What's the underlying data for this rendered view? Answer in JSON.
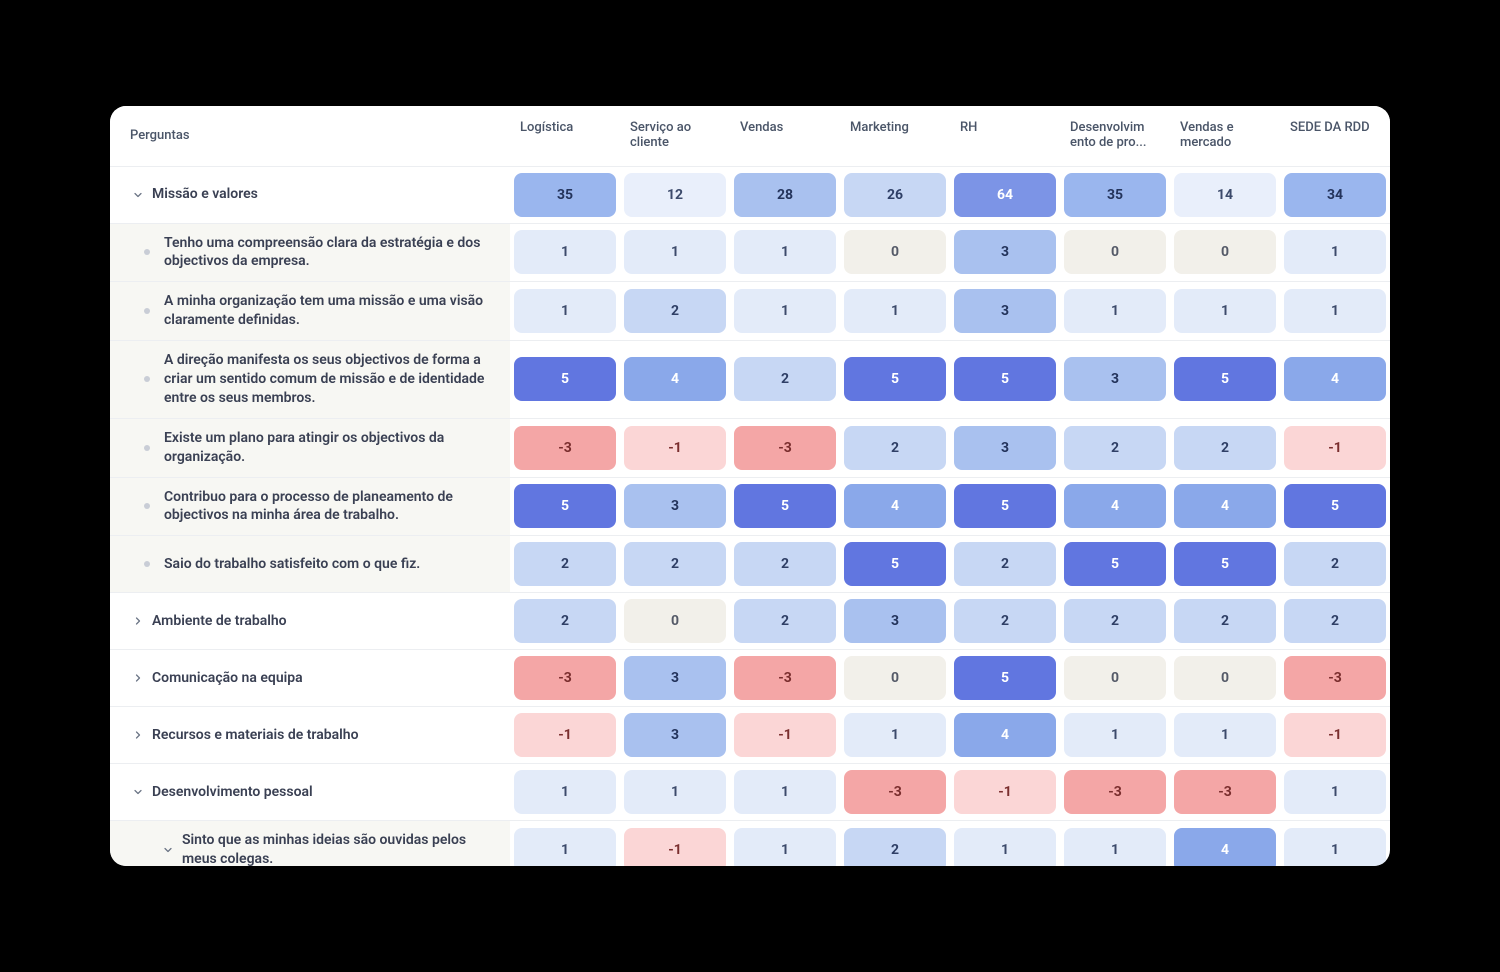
{
  "colors": {
    "page_bg": "#000000",
    "card_bg": "#ffffff",
    "border": "#eceef1",
    "text_header": "#4a5568",
    "text_row": "#3a4053",
    "bullet": "#c9cdd6",
    "sub_row_bg": "#f7f7f3",
    "scale": {
      "n3": {
        "bg": "#f4a6a6",
        "fg": "#7a2e2e"
      },
      "n1": {
        "bg": "#fbd6d6",
        "fg": "#7a2e2e"
      },
      "z0": {
        "bg": "#f2f0ea",
        "fg": "#555a68"
      },
      "p1": {
        "bg": "#e3ebf9",
        "fg": "#3c4a6b"
      },
      "p2": {
        "bg": "#c7d7f4",
        "fg": "#2f3f66"
      },
      "p3": {
        "bg": "#a9c1ef",
        "fg": "#24345c"
      },
      "p4": {
        "bg": "#8aa8ea",
        "fg": "#ffffff"
      },
      "p5": {
        "bg": "#6176e0",
        "fg": "#ffffff"
      },
      "hdr_low": {
        "bg": "#e9effb",
        "fg": "#3c4a6b"
      },
      "hdr_mid1": {
        "bg": "#c7d7f4",
        "fg": "#2f3f66"
      },
      "hdr_mid2": {
        "bg": "#a9c1ef",
        "fg": "#24345c"
      },
      "hdr_mid3": {
        "bg": "#9ab6ee",
        "fg": "#24345c"
      },
      "hdr_high": {
        "bg": "#7c94e6",
        "fg": "#ffffff"
      }
    }
  },
  "columns_header_label": "Perguntas",
  "columns": [
    "Logística",
    "Serviço ao cliente",
    "Vendas",
    "Marketing",
    "RH",
    "Desenvolvim ento de pro...",
    "Vendas e mercado",
    "SEDE DA RDD"
  ],
  "rows": [
    {
      "type": "cat",
      "expanded": true,
      "label": "Missão e valores",
      "cells": [
        {
          "v": 35,
          "c": "hdr_mid3"
        },
        {
          "v": 12,
          "c": "hdr_low"
        },
        {
          "v": 28,
          "c": "hdr_mid2"
        },
        {
          "v": 26,
          "c": "hdr_mid1"
        },
        {
          "v": 64,
          "c": "hdr_high"
        },
        {
          "v": 35,
          "c": "hdr_mid3"
        },
        {
          "v": 14,
          "c": "hdr_low"
        },
        {
          "v": 34,
          "c": "hdr_mid3"
        }
      ]
    },
    {
      "type": "sub",
      "label": "Tenho uma compreensão clara da estratégia e dos objectivos da empresa.",
      "cells": [
        {
          "v": 1,
          "c": "p1"
        },
        {
          "v": 1,
          "c": "p1"
        },
        {
          "v": 1,
          "c": "p1"
        },
        {
          "v": 0,
          "c": "z0"
        },
        {
          "v": 3,
          "c": "p3"
        },
        {
          "v": 0,
          "c": "z0"
        },
        {
          "v": 0,
          "c": "z0"
        },
        {
          "v": 1,
          "c": "p1"
        }
      ]
    },
    {
      "type": "sub",
      "label": "A minha organização tem uma missão e uma visão claramente definidas.",
      "cells": [
        {
          "v": 1,
          "c": "p1"
        },
        {
          "v": 2,
          "c": "p2"
        },
        {
          "v": 1,
          "c": "p1"
        },
        {
          "v": 1,
          "c": "p1"
        },
        {
          "v": 3,
          "c": "p3"
        },
        {
          "v": 1,
          "c": "p1"
        },
        {
          "v": 1,
          "c": "p1"
        },
        {
          "v": 1,
          "c": "p1"
        }
      ]
    },
    {
      "type": "sub",
      "label": "A direção manifesta os seus objectivos de forma a criar um sentido comum de missão e de identidade entre os seus membros.",
      "cells": [
        {
          "v": 5,
          "c": "p5"
        },
        {
          "v": 4,
          "c": "p4"
        },
        {
          "v": 2,
          "c": "p2"
        },
        {
          "v": 5,
          "c": "p5"
        },
        {
          "v": 5,
          "c": "p5"
        },
        {
          "v": 3,
          "c": "p3"
        },
        {
          "v": 5,
          "c": "p5"
        },
        {
          "v": 4,
          "c": "p4"
        }
      ]
    },
    {
      "type": "sub",
      "label": "Existe um plano para atingir os objectivos da organização.",
      "cells": [
        {
          "v": -3,
          "c": "n3"
        },
        {
          "v": -1,
          "c": "n1"
        },
        {
          "v": -3,
          "c": "n3"
        },
        {
          "v": 2,
          "c": "p2"
        },
        {
          "v": 3,
          "c": "p3"
        },
        {
          "v": 2,
          "c": "p2"
        },
        {
          "v": 2,
          "c": "p2"
        },
        {
          "v": -1,
          "c": "n1"
        }
      ]
    },
    {
      "type": "sub",
      "label": "Contribuo para o processo de planeamento de objectivos na minha área de trabalho.",
      "cells": [
        {
          "v": 5,
          "c": "p5"
        },
        {
          "v": 3,
          "c": "p3"
        },
        {
          "v": 5,
          "c": "p5"
        },
        {
          "v": 4,
          "c": "p4"
        },
        {
          "v": 5,
          "c": "p5"
        },
        {
          "v": 4,
          "c": "p4"
        },
        {
          "v": 4,
          "c": "p4"
        },
        {
          "v": 5,
          "c": "p5"
        }
      ]
    },
    {
      "type": "sub",
      "label": "Saio do trabalho satisfeito com o que fiz.",
      "cells": [
        {
          "v": 2,
          "c": "p2"
        },
        {
          "v": 2,
          "c": "p2"
        },
        {
          "v": 2,
          "c": "p2"
        },
        {
          "v": 5,
          "c": "p5"
        },
        {
          "v": 2,
          "c": "p2"
        },
        {
          "v": 5,
          "c": "p5"
        },
        {
          "v": 5,
          "c": "p5"
        },
        {
          "v": 2,
          "c": "p2"
        }
      ]
    },
    {
      "type": "cat",
      "expanded": false,
      "label": "Ambiente de trabalho",
      "cells": [
        {
          "v": 2,
          "c": "p2"
        },
        {
          "v": 0,
          "c": "z0"
        },
        {
          "v": 2,
          "c": "p2"
        },
        {
          "v": 3,
          "c": "p3"
        },
        {
          "v": 2,
          "c": "p2"
        },
        {
          "v": 2,
          "c": "p2"
        },
        {
          "v": 2,
          "c": "p2"
        },
        {
          "v": 2,
          "c": "p2"
        }
      ]
    },
    {
      "type": "cat",
      "expanded": false,
      "label": "Comunicação na equipa",
      "cells": [
        {
          "v": -3,
          "c": "n3"
        },
        {
          "v": 3,
          "c": "p3"
        },
        {
          "v": -3,
          "c": "n3"
        },
        {
          "v": 0,
          "c": "z0"
        },
        {
          "v": 5,
          "c": "p5"
        },
        {
          "v": 0,
          "c": "z0"
        },
        {
          "v": 0,
          "c": "z0"
        },
        {
          "v": -3,
          "c": "n3"
        }
      ]
    },
    {
      "type": "cat",
      "expanded": false,
      "label": "Recursos e materiais de trabalho",
      "cells": [
        {
          "v": -1,
          "c": "n1"
        },
        {
          "v": 3,
          "c": "p3"
        },
        {
          "v": -1,
          "c": "n1"
        },
        {
          "v": 1,
          "c": "p1"
        },
        {
          "v": 4,
          "c": "p4"
        },
        {
          "v": 1,
          "c": "p1"
        },
        {
          "v": 1,
          "c": "p1"
        },
        {
          "v": -1,
          "c": "n1"
        }
      ]
    },
    {
      "type": "cat",
      "expanded": true,
      "label": "Desenvolvimento pessoal",
      "cells": [
        {
          "v": 1,
          "c": "p1"
        },
        {
          "v": 1,
          "c": "p1"
        },
        {
          "v": 1,
          "c": "p1"
        },
        {
          "v": -3,
          "c": "n3"
        },
        {
          "v": -1,
          "c": "n1"
        },
        {
          "v": -3,
          "c": "n3"
        },
        {
          "v": -3,
          "c": "n3"
        },
        {
          "v": 1,
          "c": "p1"
        }
      ]
    },
    {
      "type": "sub2",
      "label": "Sinto que as minhas ideias são ouvidas pelos meus colegas.",
      "cells": [
        {
          "v": 1,
          "c": "p1"
        },
        {
          "v": -1,
          "c": "n1"
        },
        {
          "v": 1,
          "c": "p1"
        },
        {
          "v": 2,
          "c": "p2"
        },
        {
          "v": 1,
          "c": "p1"
        },
        {
          "v": 1,
          "c": "p1"
        },
        {
          "v": 4,
          "c": "p4"
        },
        {
          "v": 1,
          "c": "p1"
        }
      ]
    }
  ]
}
